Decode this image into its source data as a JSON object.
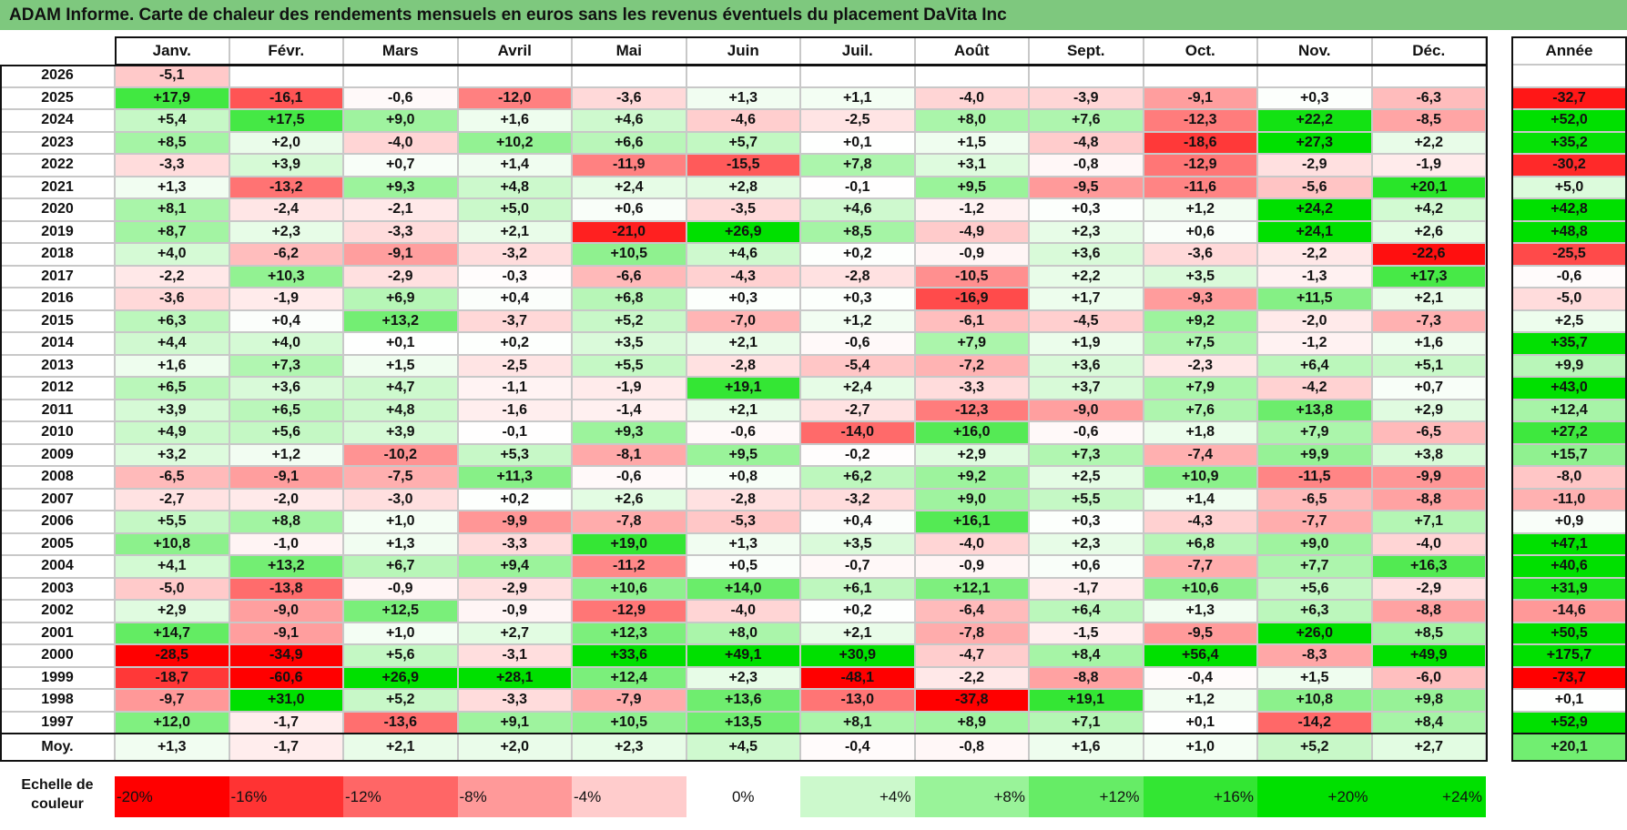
{
  "title": "ADAM Informe. Carte de chaleur des rendements mensuels en euros sans les revenus éventuels du placement DaVita Inc",
  "chart_data": {
    "type": "heatmap",
    "title": "ADAM Informe. Carte de chaleur des rendements mensuels en euros sans les revenus éventuels du placement DaVita Inc",
    "months": [
      "Janv.",
      "Févr.",
      "Mars",
      "Avril",
      "Mai",
      "Juin",
      "Juil.",
      "Août",
      "Sept.",
      "Oct.",
      "Nov.",
      "Déc."
    ],
    "year_header": "Année",
    "rows": [
      {
        "year": "2026",
        "values": [
          "-5,1",
          "",
          "",
          "",
          "",
          "",
          "",
          "",
          "",
          "",
          "",
          ""
        ],
        "annual": ""
      },
      {
        "year": "2025",
        "values": [
          "+17,9",
          "-16,1",
          "-0,6",
          "-12,0",
          "-3,6",
          "+1,3",
          "+1,1",
          "-4,0",
          "-3,9",
          "-9,1",
          "+0,3",
          "-6,3"
        ],
        "annual": "-32,7"
      },
      {
        "year": "2024",
        "values": [
          "+5,4",
          "+17,5",
          "+9,0",
          "+1,6",
          "+4,6",
          "-4,6",
          "-2,5",
          "+8,0",
          "+7,6",
          "-12,3",
          "+22,2",
          "-8,5"
        ],
        "annual": "+52,0"
      },
      {
        "year": "2023",
        "values": [
          "+8,5",
          "+2,0",
          "-4,0",
          "+10,2",
          "+6,6",
          "+5,7",
          "+0,1",
          "+1,5",
          "-4,8",
          "-18,6",
          "+27,3",
          "+2,2"
        ],
        "annual": "+35,2"
      },
      {
        "year": "2022",
        "values": [
          "-3,3",
          "+3,9",
          "+0,7",
          "+1,4",
          "-11,9",
          "-15,5",
          "+7,8",
          "+3,1",
          "-0,8",
          "-12,9",
          "-2,9",
          "-1,9"
        ],
        "annual": "-30,2"
      },
      {
        "year": "2021",
        "values": [
          "+1,3",
          "-13,2",
          "+9,3",
          "+4,8",
          "+2,4",
          "+2,8",
          "-0,1",
          "+9,5",
          "-9,5",
          "-11,6",
          "-5,6",
          "+20,1"
        ],
        "annual": "+5,0"
      },
      {
        "year": "2020",
        "values": [
          "+8,1",
          "-2,4",
          "-2,1",
          "+5,0",
          "+0,6",
          "-3,5",
          "+4,6",
          "-1,2",
          "+0,3",
          "+1,2",
          "+24,2",
          "+4,2"
        ],
        "annual": "+42,8"
      },
      {
        "year": "2019",
        "values": [
          "+8,7",
          "+2,3",
          "-3,3",
          "+2,1",
          "-21,0",
          "+26,9",
          "+8,5",
          "-4,9",
          "+2,3",
          "+0,6",
          "+24,1",
          "+2,6"
        ],
        "annual": "+48,8"
      },
      {
        "year": "2018",
        "values": [
          "+4,0",
          "-6,2",
          "-9,1",
          "-3,2",
          "+10,5",
          "+4,6",
          "+0,2",
          "-0,9",
          "+3,6",
          "-3,6",
          "-2,2",
          "-22,6"
        ],
        "annual": "-25,5"
      },
      {
        "year": "2017",
        "values": [
          "-2,2",
          "+10,3",
          "-2,9",
          "-0,3",
          "-6,6",
          "-4,3",
          "-2,8",
          "-10,5",
          "+2,2",
          "+3,5",
          "-1,3",
          "+17,3"
        ],
        "annual": "-0,6"
      },
      {
        "year": "2016",
        "values": [
          "-3,6",
          "-1,9",
          "+6,9",
          "+0,4",
          "+6,8",
          "+0,3",
          "+0,3",
          "-16,9",
          "+1,7",
          "-9,3",
          "+11,5",
          "+2,1"
        ],
        "annual": "-5,0"
      },
      {
        "year": "2015",
        "values": [
          "+6,3",
          "+0,4",
          "+13,2",
          "-3,7",
          "+5,2",
          "-7,0",
          "+1,2",
          "-6,1",
          "-4,5",
          "+9,2",
          "-2,0",
          "-7,3"
        ],
        "annual": "+2,5"
      },
      {
        "year": "2014",
        "values": [
          "+4,4",
          "+4,0",
          "+0,1",
          "+0,2",
          "+3,5",
          "+2,1",
          "-0,6",
          "+7,9",
          "+1,9",
          "+7,5",
          "-1,2",
          "+1,6"
        ],
        "annual": "+35,7"
      },
      {
        "year": "2013",
        "values": [
          "+1,6",
          "+7,3",
          "+1,5",
          "-2,5",
          "+5,5",
          "-2,8",
          "-5,4",
          "-7,2",
          "+3,6",
          "-2,3",
          "+6,4",
          "+5,1"
        ],
        "annual": "+9,9"
      },
      {
        "year": "2012",
        "values": [
          "+6,5",
          "+3,6",
          "+4,7",
          "-1,1",
          "-1,9",
          "+19,1",
          "+2,4",
          "-3,3",
          "+3,7",
          "+7,9",
          "-4,2",
          "+0,7"
        ],
        "annual": "+43,0"
      },
      {
        "year": "2011",
        "values": [
          "+3,9",
          "+6,5",
          "+4,8",
          "-1,6",
          "-1,4",
          "+2,1",
          "-2,7",
          "-12,3",
          "-9,0",
          "+7,6",
          "+13,8",
          "+2,9"
        ],
        "annual": "+12,4"
      },
      {
        "year": "2010",
        "values": [
          "+4,9",
          "+5,6",
          "+3,9",
          "-0,1",
          "+9,3",
          "-0,6",
          "-14,0",
          "+16,0",
          "-0,6",
          "+1,8",
          "+7,9",
          "-6,5"
        ],
        "annual": "+27,2"
      },
      {
        "year": "2009",
        "values": [
          "+3,2",
          "+1,2",
          "-10,2",
          "+5,3",
          "-8,1",
          "+9,5",
          "-0,2",
          "+2,9",
          "+7,3",
          "-7,4",
          "+9,9",
          "+3,8"
        ],
        "annual": "+15,7"
      },
      {
        "year": "2008",
        "values": [
          "-6,5",
          "-9,1",
          "-7,5",
          "+11,3",
          "-0,6",
          "+0,8",
          "+6,2",
          "+9,2",
          "+2,5",
          "+10,9",
          "-11,5",
          "-9,9"
        ],
        "annual": "-8,0"
      },
      {
        "year": "2007",
        "values": [
          "-2,7",
          "-2,0",
          "-3,0",
          "+0,2",
          "+2,6",
          "-2,8",
          "-3,2",
          "+9,0",
          "+5,5",
          "+1,4",
          "-6,5",
          "-8,8"
        ],
        "annual": "-11,0"
      },
      {
        "year": "2006",
        "values": [
          "+5,5",
          "+8,8",
          "+1,0",
          "-9,9",
          "-7,8",
          "-5,3",
          "+0,4",
          "+16,1",
          "+0,3",
          "-4,3",
          "-7,7",
          "+7,1"
        ],
        "annual": "+0,9"
      },
      {
        "year": "2005",
        "values": [
          "+10,8",
          "-1,0",
          "+1,3",
          "-3,3",
          "+19,0",
          "+1,3",
          "+3,5",
          "-4,0",
          "+2,3",
          "+6,8",
          "+9,0",
          "-4,0"
        ],
        "annual": "+47,1"
      },
      {
        "year": "2004",
        "values": [
          "+4,1",
          "+13,2",
          "+6,7",
          "+9,4",
          "-11,2",
          "+0,5",
          "-0,7",
          "-0,9",
          "+0,6",
          "-7,7",
          "+7,7",
          "+16,3"
        ],
        "annual": "+40,6"
      },
      {
        "year": "2003",
        "values": [
          "-5,0",
          "-13,8",
          "-0,9",
          "-2,9",
          "+10,6",
          "+14,0",
          "+6,1",
          "+12,1",
          "-1,7",
          "+10,6",
          "+5,6",
          "-2,9"
        ],
        "annual": "+31,9"
      },
      {
        "year": "2002",
        "values": [
          "+2,9",
          "-9,0",
          "+12,5",
          "-0,9",
          "-12,9",
          "-4,0",
          "+0,2",
          "-6,4",
          "+6,4",
          "+1,3",
          "+6,3",
          "-8,8"
        ],
        "annual": "-14,6"
      },
      {
        "year": "2001",
        "values": [
          "+14,7",
          "-9,1",
          "+1,0",
          "+2,7",
          "+12,3",
          "+8,0",
          "+2,1",
          "-7,8",
          "-1,5",
          "-9,5",
          "+26,0",
          "+8,5"
        ],
        "annual": "+50,5"
      },
      {
        "year": "2000",
        "values": [
          "-28,5",
          "-34,9",
          "+5,6",
          "-3,1",
          "+33,6",
          "+49,1",
          "+30,9",
          "-4,7",
          "+8,4",
          "+56,4",
          "-8,3",
          "+49,9"
        ],
        "annual": "+175,7"
      },
      {
        "year": "1999",
        "values": [
          "-18,7",
          "-60,6",
          "+26,9",
          "+28,1",
          "+12,4",
          "+2,3",
          "-48,1",
          "-2,2",
          "-8,8",
          "-0,4",
          "+1,5",
          "-6,0"
        ],
        "annual": "-73,7"
      },
      {
        "year": "1998",
        "values": [
          "-9,7",
          "+31,0",
          "+5,2",
          "-3,3",
          "-7,9",
          "+13,6",
          "-13,0",
          "-37,8",
          "+19,1",
          "+1,2",
          "+10,8",
          "+9,8"
        ],
        "annual": "+0,1"
      },
      {
        "year": "1997",
        "values": [
          "+12,0",
          "-1,7",
          "-13,6",
          "+9,1",
          "+10,5",
          "+13,5",
          "+8,1",
          "+8,9",
          "+7,1",
          "+0,1",
          "-14,2",
          "+8,4"
        ],
        "annual": "+52,9"
      }
    ],
    "average": {
      "label": "Moy.",
      "values": [
        "+1,3",
        "-1,7",
        "+2,1",
        "+2,0",
        "+2,3",
        "+4,5",
        "-0,4",
        "-0,8",
        "+1,6",
        "+1,0",
        "+5,2",
        "+2,7"
      ],
      "annual": "+20,1"
    },
    "scale": {
      "label_line1": "Echelle de",
      "label_line2": "couleur",
      "stops": [
        {
          "label": "-20%",
          "value": -20
        },
        {
          "label": "-16%",
          "value": -16
        },
        {
          "label": "-12%",
          "value": -12
        },
        {
          "label": "-8%",
          "value": -8
        },
        {
          "label": "-4%",
          "value": -4
        },
        {
          "label": "0%",
          "value": 0
        },
        {
          "label": "+4%",
          "value": 4
        },
        {
          "label": "+8%",
          "value": 8
        },
        {
          "label": "+12%",
          "value": 12
        },
        {
          "label": "+16%",
          "value": 16
        },
        {
          "label": "+20%",
          "value": 20
        },
        {
          "label": "+24%",
          "value": 24
        }
      ]
    },
    "colors": {
      "negative_max": "#ff0000",
      "zero": "#ffffff",
      "positive_max": "#00e000",
      "title_bg": "#7ec87e"
    }
  }
}
